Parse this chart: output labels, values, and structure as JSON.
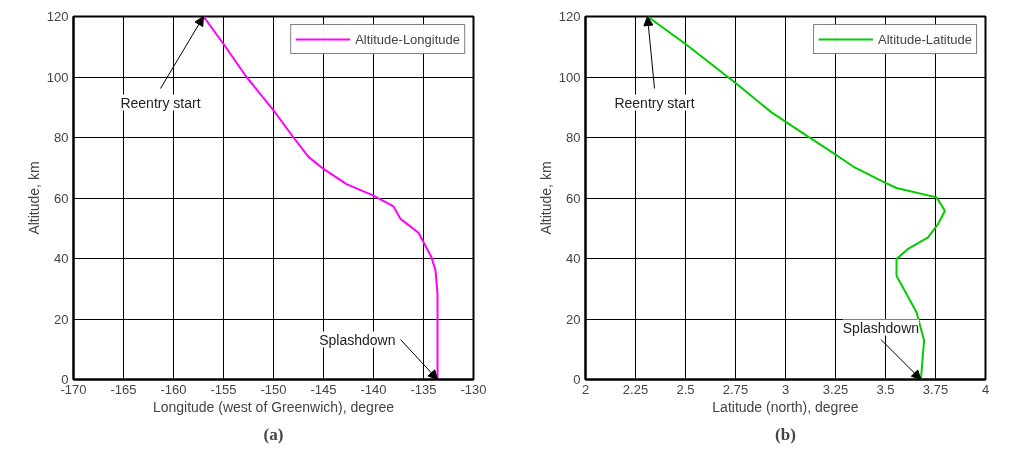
{
  "chart_data": [
    {
      "type": "line",
      "title": "(a)",
      "xlabel": "Longitude (west of Greenwich), degree",
      "ylabel": "Altitude, km",
      "xlim": [
        -170,
        -130
      ],
      "xticks": [
        -170,
        -165,
        -160,
        -155,
        -150,
        -145,
        -140,
        -135,
        -130
      ],
      "ylim": [
        0,
        120
      ],
      "yticks": [
        0,
        20,
        40,
        60,
        80,
        100,
        120
      ],
      "grid": true,
      "legend": "top right",
      "series": [
        {
          "name": "Altitude-Longitude",
          "color": "#ff00ff",
          "x": [
            -157,
            -155,
            -152.7,
            -150,
            -148,
            -146.5,
            -145,
            -142.7,
            -140,
            -138,
            -137.3,
            -135.5,
            -134.2,
            -133.8,
            -133.6,
            -133.6
          ],
          "values": [
            120,
            110.9,
            100,
            89,
            80,
            73.6,
            69.6,
            64.6,
            60.8,
            57.2,
            53.1,
            48.5,
            40.4,
            36,
            28.3,
            0
          ]
        }
      ],
      "annotations": [
        {
          "text": "Reentry start",
          "x": -157,
          "y": 120
        },
        {
          "text": "Splashdown",
          "x": -133.6,
          "y": 0
        }
      ]
    },
    {
      "type": "line",
      "title": "(b)",
      "xlabel": "Latitude (north), degree",
      "ylabel": "Altitude, km",
      "xlim": [
        2,
        4
      ],
      "xticks": [
        2,
        2.25,
        2.5,
        2.75,
        3,
        3.25,
        3.5,
        3.75,
        4
      ],
      "ylim": [
        0,
        120
      ],
      "yticks": [
        0,
        20,
        40,
        60,
        80,
        100,
        120
      ],
      "grid": true,
      "legend": "top right",
      "series": [
        {
          "name": "Altitude-Latitude",
          "color": "#00cc00",
          "x": [
            2.31,
            2.5,
            2.747,
            2.93,
            3.113,
            3.247,
            3.338,
            3.497,
            3.555,
            3.755,
            3.797,
            3.763,
            3.713,
            3.613,
            3.555,
            3.555,
            3.655,
            3.693,
            3.677
          ],
          "values": [
            120,
            110.9,
            98.2,
            88.3,
            80.3,
            74.5,
            70.4,
            65.1,
            63.3,
            60.2,
            55.8,
            51.4,
            47.0,
            43.2,
            39.8,
            34.3,
            22.2,
            12.9,
            0
          ]
        }
      ],
      "annotations": [
        {
          "text": "Reentry start",
          "x": 2.31,
          "y": 120
        },
        {
          "text": "Splashdown",
          "x": 3.677,
          "y": 0
        }
      ]
    }
  ]
}
